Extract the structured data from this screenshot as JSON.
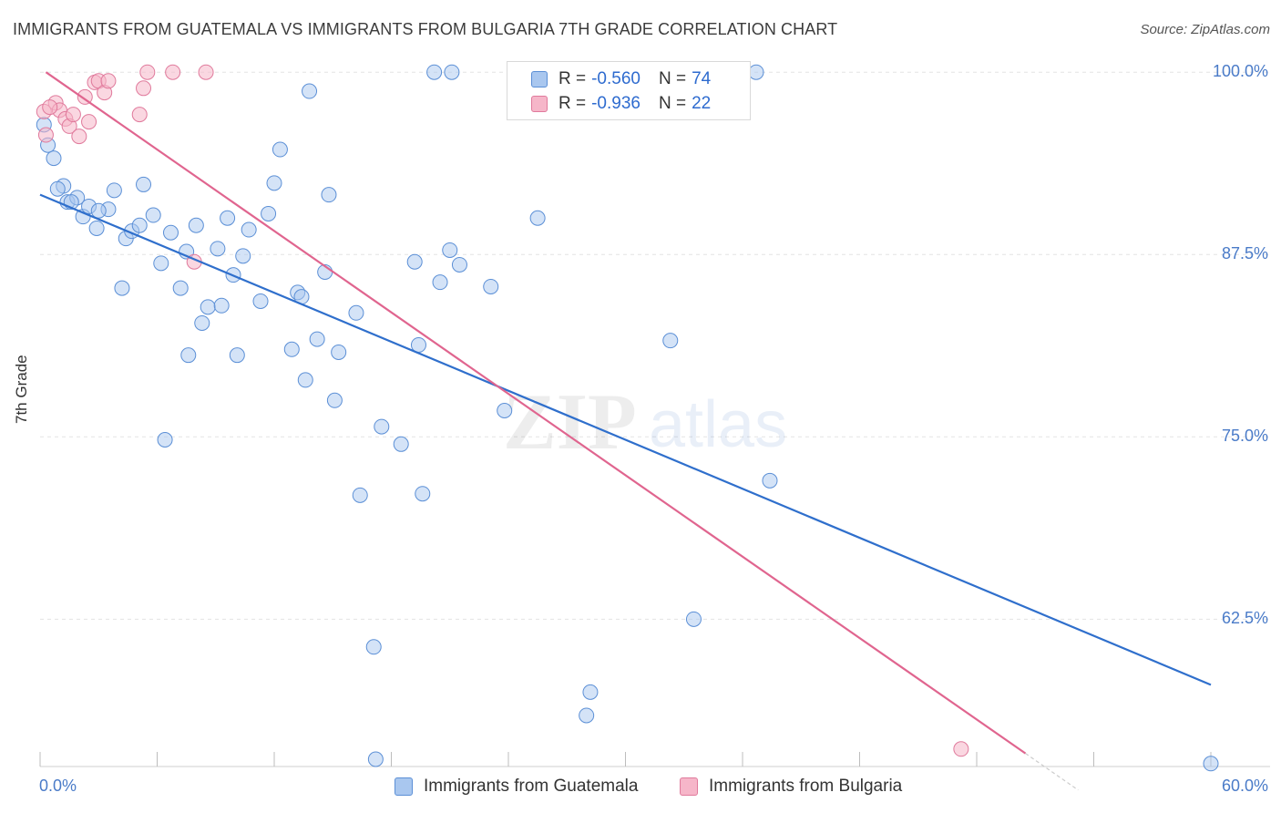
{
  "title": "IMMIGRANTS FROM GUATEMALA VS IMMIGRANTS FROM BULGARIA 7TH GRADE CORRELATION CHART",
  "source": "Source: ZipAtlas.com",
  "watermark": {
    "zip": "ZIP",
    "atlas": "atlas"
  },
  "colors": {
    "guatemala_fill": "#a9c7ef",
    "guatemala_stroke": "#5b8fd6",
    "guatemala_line": "#2f6fcc",
    "bulgaria_fill": "#f6b6c9",
    "bulgaria_stroke": "#e07a9c",
    "bulgaria_line": "#e0658f",
    "tick_text": "#4a7bc8",
    "grid": "#e3e3e3"
  },
  "legend": {
    "rows": [
      {
        "r_label": "R = ",
        "r_value": "-0.560",
        "n_label": "N = ",
        "n_value": "74"
      },
      {
        "r_label": "R = ",
        "r_value": "-0.936",
        "n_label": "N = ",
        "n_value": "22"
      }
    ]
  },
  "bottom_legend": [
    "Immigrants from Guatemala",
    "Immigrants from Bulgaria"
  ],
  "chart_data": {
    "type": "scatter",
    "title": "IMMIGRANTS FROM GUATEMALA VS IMMIGRANTS FROM BULGARIA 7TH GRADE CORRELATION CHART",
    "xlabel": "",
    "ylabel": "7th Grade",
    "xlim": [
      0,
      60
    ],
    "ylim": [
      52.4,
      101.2
    ],
    "x_tick_labels": [
      "0.0%",
      "60.0%"
    ],
    "y_ticks": [
      100,
      87.5,
      75,
      62.5
    ],
    "y_tick_labels": [
      "100.0%",
      "87.5%",
      "75.0%",
      "62.5%"
    ],
    "grid": true,
    "legend_position": "top-center",
    "series": [
      {
        "name": "Immigrants from Guatemala",
        "r": -0.56,
        "n": 74,
        "trend": {
          "x": [
            0,
            60
          ],
          "y": [
            91.6,
            58.0
          ]
        },
        "points": [
          [
            0.2,
            96.4
          ],
          [
            0.7,
            94.1
          ],
          [
            1.2,
            92.2
          ],
          [
            1.4,
            91.1
          ],
          [
            1.9,
            91.4
          ],
          [
            2.2,
            90.1
          ],
          [
            2.5,
            90.8
          ],
          [
            2.9,
            89.3
          ],
          [
            3.5,
            90.6
          ],
          [
            3.8,
            91.9
          ],
          [
            4.2,
            85.2
          ],
          [
            4.4,
            88.6
          ],
          [
            4.7,
            89.1
          ],
          [
            5.1,
            89.5
          ],
          [
            5.3,
            92.3
          ],
          [
            5.8,
            90.2
          ],
          [
            6.2,
            86.9
          ],
          [
            6.7,
            89.0
          ],
          [
            7.2,
            85.2
          ],
          [
            7.5,
            87.7
          ],
          [
            7.6,
            80.6
          ],
          [
            8.0,
            89.5
          ],
          [
            8.3,
            82.8
          ],
          [
            8.6,
            83.9
          ],
          [
            9.1,
            87.9
          ],
          [
            9.3,
            84.0
          ],
          [
            9.6,
            90.0
          ],
          [
            9.9,
            86.1
          ],
          [
            10.1,
            80.6
          ],
          [
            10.4,
            87.4
          ],
          [
            10.7,
            89.2
          ],
          [
            11.3,
            84.3
          ],
          [
            11.7,
            90.3
          ],
          [
            12.0,
            92.4
          ],
          [
            12.3,
            94.7
          ],
          [
            12.9,
            81.0
          ],
          [
            13.2,
            84.9
          ],
          [
            13.4,
            84.6
          ],
          [
            13.6,
            78.9
          ],
          [
            13.8,
            98.7
          ],
          [
            14.2,
            81.7
          ],
          [
            14.6,
            86.3
          ],
          [
            14.8,
            91.6
          ],
          [
            15.1,
            77.5
          ],
          [
            15.3,
            80.8
          ],
          [
            16.2,
            83.5
          ],
          [
            16.4,
            71.0
          ],
          [
            17.1,
            60.6
          ],
          [
            17.5,
            75.7
          ],
          [
            18.5,
            74.5
          ],
          [
            19.2,
            87.0
          ],
          [
            19.4,
            81.3
          ],
          [
            19.6,
            71.1
          ],
          [
            20.2,
            100.0
          ],
          [
            20.5,
            85.6
          ],
          [
            21.0,
            87.8
          ],
          [
            21.1,
            100.0
          ],
          [
            21.5,
            86.8
          ],
          [
            23.1,
            85.3
          ],
          [
            23.8,
            76.8
          ],
          [
            25.5,
            90.0
          ],
          [
            28.0,
            55.9
          ],
          [
            28.2,
            57.5
          ],
          [
            32.3,
            81.6
          ],
          [
            33.5,
            62.5
          ],
          [
            36.7,
            100.0
          ],
          [
            37.4,
            72.0
          ],
          [
            60.0,
            52.6
          ],
          [
            17.2,
            52.9
          ],
          [
            6.4,
            74.8
          ],
          [
            3.0,
            90.5
          ],
          [
            1.6,
            91.1
          ],
          [
            0.4,
            95.0
          ],
          [
            0.9,
            92.0
          ]
        ]
      },
      {
        "name": "Immigrants from Bulgaria",
        "r": -0.936,
        "n": 22,
        "trend": {
          "x": [
            0.3,
            50.5
          ],
          "y": [
            100.0,
            53.3
          ]
        },
        "points": [
          [
            0.2,
            97.3
          ],
          [
            0.3,
            95.7
          ],
          [
            0.8,
            97.9
          ],
          [
            1.0,
            97.4
          ],
          [
            1.3,
            96.8
          ],
          [
            1.5,
            96.3
          ],
          [
            1.7,
            97.1
          ],
          [
            2.0,
            95.6
          ],
          [
            2.3,
            98.3
          ],
          [
            2.5,
            96.6
          ],
          [
            2.8,
            99.3
          ],
          [
            3.0,
            99.4
          ],
          [
            3.3,
            98.6
          ],
          [
            3.5,
            99.4
          ],
          [
            5.1,
            97.1
          ],
          [
            5.3,
            98.9
          ],
          [
            5.5,
            100.0
          ],
          [
            6.8,
            100.0
          ],
          [
            7.9,
            87.0
          ],
          [
            8.5,
            100.0
          ],
          [
            47.2,
            53.6
          ],
          [
            0.5,
            97.6
          ]
        ]
      }
    ]
  }
}
